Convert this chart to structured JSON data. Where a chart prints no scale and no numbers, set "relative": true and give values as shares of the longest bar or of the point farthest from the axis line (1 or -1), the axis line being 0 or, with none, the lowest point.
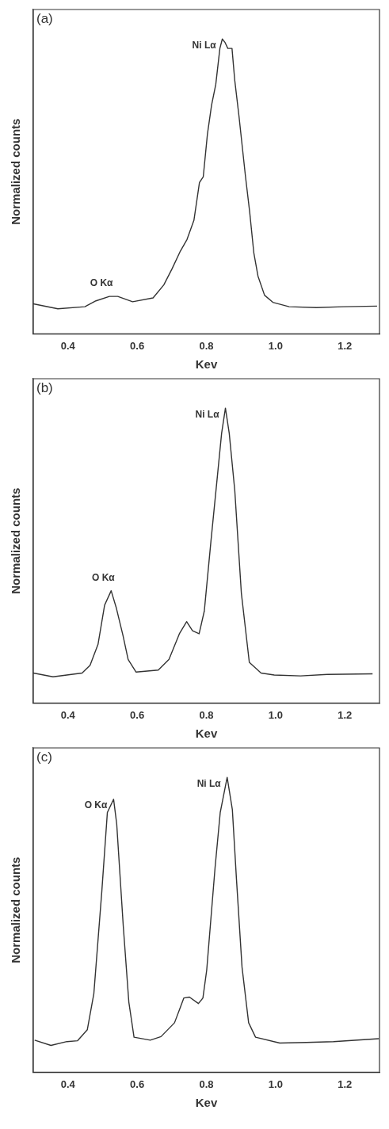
{
  "chart_data": [
    {
      "type": "line",
      "xlabel": "Kev",
      "ylabel": "Normalized counts",
      "relative": true,
      "xlim": [
        0.3,
        1.3
      ],
      "xticks": [
        {
          "value": 0.4,
          "label": "0.4"
        },
        {
          "value": 0.6,
          "label": "0.6"
        },
        {
          "value": 0.8,
          "label": "0.8"
        },
        {
          "value": 1.0,
          "label": "1.0"
        },
        {
          "value": 1.2,
          "label": "1.2"
        }
      ],
      "marker": "none",
      "grid": false,
      "legend": false,
      "color": "#333333",
      "x": [
        0.3,
        0.371,
        0.449,
        0.481,
        0.52,
        0.544,
        0.587,
        0.646,
        0.677,
        0.701,
        0.725,
        0.744,
        0.764,
        0.78,
        0.791,
        0.803,
        0.815,
        0.827,
        0.839,
        0.846,
        0.854,
        0.862,
        0.874,
        0.882,
        0.894,
        0.913,
        0.925,
        0.937,
        0.949,
        0.968,
        0.992,
        1.039,
        1.118,
        1.196,
        1.293
      ],
      "values": [
        0.102,
        0.085,
        0.092,
        0.112,
        0.127,
        0.127,
        0.109,
        0.122,
        0.166,
        0.221,
        0.281,
        0.32,
        0.385,
        0.513,
        0.533,
        0.677,
        0.776,
        0.845,
        0.968,
        1.0,
        0.988,
        0.968,
        0.968,
        0.859,
        0.74,
        0.533,
        0.414,
        0.275,
        0.196,
        0.131,
        0.107,
        0.092,
        0.089,
        0.092,
        0.094
      ],
      "annotations": [
        "(a)",
        {
          "text": "Ni Lα",
          "x": 0.846,
          "y": 1.0
        },
        {
          "text": "O Kα",
          "x": 0.52,
          "y": 0.127
        }
      ]
    },
    {
      "type": "line",
      "xlabel": "Kev",
      "ylabel": "Normalized counts",
      "relative": true,
      "xlim": [
        0.3,
        1.3
      ],
      "xticks": [
        {
          "value": 0.4,
          "label": "0.4"
        },
        {
          "value": 0.6,
          "label": "0.6"
        },
        {
          "value": 0.8,
          "label": "0.8"
        },
        {
          "value": 1.0,
          "label": "1.0"
        },
        {
          "value": 1.2,
          "label": "1.2"
        }
      ],
      "marker": "none",
      "grid": false,
      "legend": false,
      "color": "#333333",
      "x": [
        0.3,
        0.357,
        0.441,
        0.464,
        0.487,
        0.506,
        0.525,
        0.54,
        0.559,
        0.574,
        0.597,
        0.661,
        0.692,
        0.722,
        0.743,
        0.76,
        0.779,
        0.794,
        0.813,
        0.832,
        0.844,
        0.855,
        0.866,
        0.882,
        0.901,
        0.924,
        0.958,
        0.996,
        1.072,
        1.149,
        1.28
      ],
      "values": [
        0.102,
        0.089,
        0.102,
        0.128,
        0.199,
        0.332,
        0.381,
        0.322,
        0.23,
        0.148,
        0.105,
        0.112,
        0.148,
        0.235,
        0.276,
        0.245,
        0.235,
        0.312,
        0.547,
        0.772,
        0.915,
        1.0,
        0.915,
        0.721,
        0.373,
        0.138,
        0.102,
        0.095,
        0.092,
        0.097,
        0.099
      ],
      "annotations": [
        "(b)",
        {
          "text": "Ni Lα",
          "x": 0.855,
          "y": 1.0
        },
        {
          "text": "O Kα",
          "x": 0.525,
          "y": 0.381
        }
      ]
    },
    {
      "type": "line",
      "xlabel": "Kev",
      "ylabel": "Normalized counts",
      "relative": true,
      "xlim": [
        0.3,
        1.3
      ],
      "xticks": [
        {
          "value": 0.4,
          "label": "0.4"
        },
        {
          "value": 0.6,
          "label": "0.6"
        },
        {
          "value": 0.8,
          "label": "0.8"
        },
        {
          "value": 1.0,
          "label": "1.0"
        },
        {
          "value": 1.2,
          "label": "1.2"
        }
      ],
      "marker": "none",
      "grid": false,
      "legend": false,
      "color": "#333333",
      "x": [
        0.304,
        0.351,
        0.397,
        0.428,
        0.456,
        0.475,
        0.498,
        0.514,
        0.532,
        0.541,
        0.56,
        0.576,
        0.591,
        0.638,
        0.669,
        0.708,
        0.735,
        0.751,
        0.777,
        0.79,
        0.801,
        0.825,
        0.84,
        0.86,
        0.875,
        0.887,
        0.903,
        0.922,
        0.942,
        1.012,
        1.089,
        1.167,
        1.298
      ],
      "values": [
        0.109,
        0.091,
        0.104,
        0.107,
        0.144,
        0.267,
        0.614,
        0.881,
        0.926,
        0.842,
        0.495,
        0.238,
        0.119,
        0.109,
        0.121,
        0.168,
        0.252,
        0.255,
        0.233,
        0.252,
        0.347,
        0.693,
        0.881,
        1.0,
        0.891,
        0.653,
        0.356,
        0.168,
        0.119,
        0.099,
        0.101,
        0.104,
        0.114
      ],
      "annotations": [
        "(c)",
        {
          "text": "O Kα",
          "x": 0.532,
          "y": 0.926
        },
        {
          "text": "Ni Lα",
          "x": 0.86,
          "y": 1.0
        }
      ]
    }
  ]
}
